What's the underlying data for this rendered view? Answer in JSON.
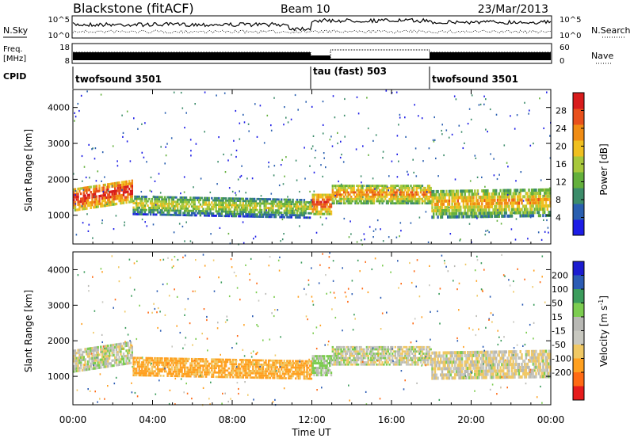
{
  "header": {
    "station": "Blackstone (fitACF)",
    "beam": "Beam 10",
    "date": "23/Mar/2013"
  },
  "strips": {
    "nsky_label": "N.Sky",
    "nsky_ticks": [
      "10^5",
      "10^0"
    ],
    "nsearch_label": "N.Search",
    "freq_label_1": "Freq.",
    "freq_label_2": "[MHz]",
    "freq_ticks": [
      "18",
      "8"
    ],
    "nave_label": "Nave",
    "nave_ticks": [
      "60",
      "0"
    ],
    "cpid_label": "CPID",
    "cpid_segments": [
      {
        "label": "twofsound 3501",
        "start_hr": 0,
        "end_hr": 12
      },
      {
        "label": "tau (fast) 503",
        "start_hr": 12,
        "end_hr": 18
      },
      {
        "label": "twofsound 3501",
        "start_hr": 18,
        "end_hr": 24
      }
    ]
  },
  "colors": {
    "power": [
      "#1d1de6",
      "#2a5fb0",
      "#3c8c6a",
      "#64b03c",
      "#a8c83c",
      "#f0c020",
      "#f08c14",
      "#e8501c",
      "#d81c1c"
    ],
    "velocity": [
      "#e61c1c",
      "#ff6a14",
      "#ffa020",
      "#f0c864",
      "#c8c8c0",
      "#b8b8b4",
      "#7ccc50",
      "#3c9c5c",
      "#2c5cb4",
      "#1c1cd0"
    ]
  },
  "chart_data": [
    {
      "type": "heatmap",
      "name_hint": "power",
      "xlabel": "",
      "ylabel": "Slant Range [km]",
      "xlim_hr": [
        0,
        24
      ],
      "ylim_km": [
        200,
        4500
      ],
      "yticks": [
        1000,
        2000,
        3000,
        4000
      ],
      "colorbar_label": "Power [dB]",
      "colorbar_ticks": [
        4,
        8,
        12,
        16,
        20,
        24,
        28
      ],
      "colorbar_range": [
        0,
        32
      ],
      "bands": [
        {
          "t0": 0.0,
          "t1": 3.0,
          "y0_start": 1100,
          "y0_end": 1350,
          "width": 650,
          "value": 24
        },
        {
          "t0": 3.0,
          "t1": 12.0,
          "y0_start": 1000,
          "y0_end": 900,
          "width": 550,
          "value": 12
        },
        {
          "t0": 12.0,
          "t1": 13.0,
          "y0_start": 1000,
          "y0_end": 1000,
          "width": 600,
          "value": 22
        },
        {
          "t0": 13.0,
          "t1": 18.0,
          "y0_start": 1300,
          "y0_end": 1300,
          "width": 550,
          "value": 18
        },
        {
          "t0": 18.0,
          "t1": 24.0,
          "y0_start": 900,
          "y0_end": 950,
          "width": 800,
          "value": 16
        }
      ]
    },
    {
      "type": "heatmap",
      "name_hint": "velocity",
      "xlabel": "Time UT",
      "ylabel": "Slant Range [km]",
      "xlim_hr": [
        0,
        24
      ],
      "ylim_km": [
        200,
        4500
      ],
      "yticks": [
        1000,
        2000,
        3000,
        4000
      ],
      "xticks": [
        "00:00",
        "04:00",
        "08:00",
        "12:00",
        "16:00",
        "20:00",
        "00:00"
      ],
      "colorbar_label": "Velocity [m s^-1]",
      "colorbar_ticks": [
        200,
        100,
        50,
        15,
        -15,
        -50,
        -100,
        -200
      ],
      "bands": [
        {
          "t0": 0.0,
          "t1": 3.0,
          "y0_start": 1100,
          "y0_end": 1350,
          "width": 650,
          "value": 0
        },
        {
          "t0": 3.0,
          "t1": 12.0,
          "y0_start": 1000,
          "y0_end": 900,
          "width": 550,
          "value": -60
        },
        {
          "t0": 12.0,
          "t1": 13.0,
          "y0_start": 1000,
          "y0_end": 1000,
          "width": 600,
          "value": 20
        },
        {
          "t0": 13.0,
          "t1": 18.0,
          "y0_start": 1300,
          "y0_end": 1300,
          "width": 550,
          "value": 0
        },
        {
          "t0": 18.0,
          "t1": 24.0,
          "y0_start": 900,
          "y0_end": 950,
          "width": 800,
          "value": -10
        }
      ]
    }
  ]
}
